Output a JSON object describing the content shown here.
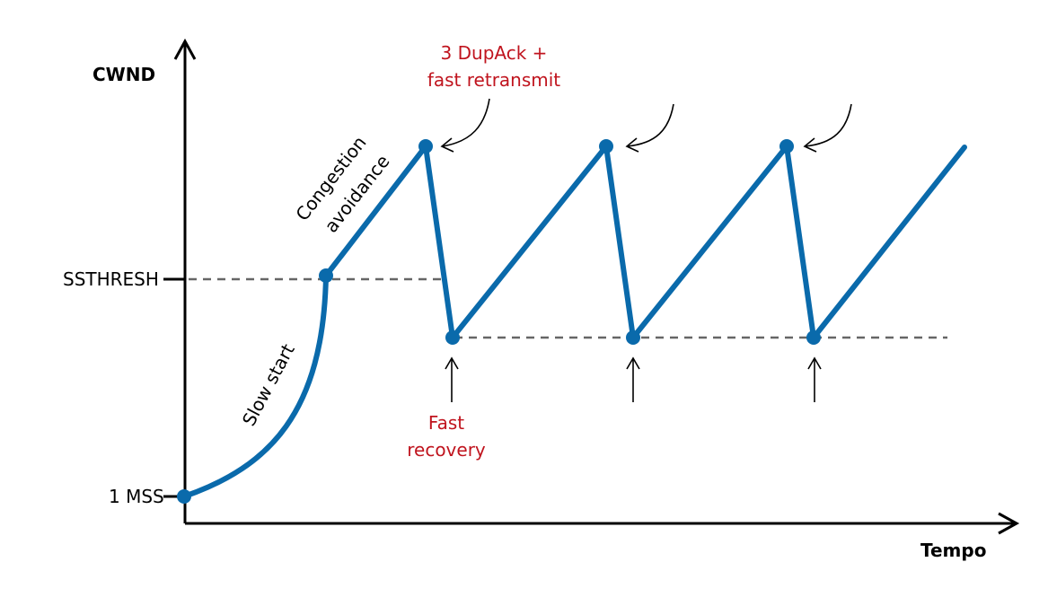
{
  "axes": {
    "y_label": "CWND",
    "x_label": "Tempo",
    "ticks": {
      "ssthresh": "SSTHRESH",
      "one_mss": "1 MSS"
    }
  },
  "phases": {
    "slow_start": "Slow start",
    "congestion_line1": "Congestion",
    "congestion_line2": "avoidance"
  },
  "annotations": {
    "dupack_line1": "3 DupAck +",
    "dupack_line2": "fast retransmit",
    "fast_recovery_line1": "Fast",
    "fast_recovery_line2": "recovery"
  },
  "colors": {
    "line": "#0a6aab",
    "annotation": "#c0141e",
    "dashed": "#666666"
  }
}
